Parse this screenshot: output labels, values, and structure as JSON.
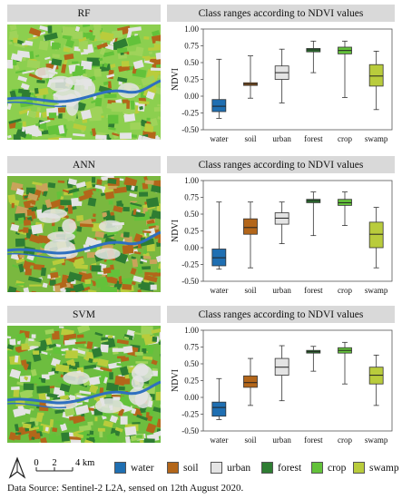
{
  "panels": [
    {
      "label": "RF",
      "title": "Class ranges according to NDVI values"
    },
    {
      "label": "ANN",
      "title": "Class ranges according to NDVI values"
    },
    {
      "label": "SVM",
      "title": "Class ranges according to NDVI values"
    }
  ],
  "legend": {
    "north_symbol": "north-arrow-icon",
    "scale_ticks": [
      "0",
      "2",
      "4 km"
    ],
    "items": [
      {
        "label": "water",
        "color": "#1f6fb2"
      },
      {
        "label": "soil",
        "color": "#b3661a"
      },
      {
        "label": "urban",
        "color": "#e4e4e4"
      },
      {
        "label": "forest",
        "color": "#2e7d32"
      },
      {
        "label": "crop",
        "color": "#63c23a"
      },
      {
        "label": "swamp",
        "color": "#b9cc3c"
      }
    ]
  },
  "source_text": "Data Source: Sentinel-2 L2A, sensed on 12th August 2020.",
  "chart_data": [
    {
      "type": "box",
      "title": "Class ranges according to NDVI values",
      "ylabel": "NDVI",
      "ylim": [
        -0.5,
        1.0
      ],
      "yticks": [
        "1.00",
        "0.75",
        "0.50",
        "0.25",
        "0.00",
        "-0.25",
        "-0.50"
      ],
      "categories": [
        "water",
        "soil",
        "urban",
        "forest",
        "crop",
        "swamp"
      ],
      "colors": [
        "#1f6fb2",
        "#b3661a",
        "#e4e4e4",
        "#2e7d32",
        "#63c23a",
        "#b9cc3c"
      ],
      "boxes": [
        {
          "min": -0.33,
          "q1": -0.23,
          "median": -0.15,
          "q3": -0.05,
          "max": 0.55
        },
        {
          "min": -0.03,
          "q1": 0.16,
          "median": 0.18,
          "q3": 0.2,
          "max": 0.6
        },
        {
          "min": -0.1,
          "q1": 0.25,
          "median": 0.35,
          "q3": 0.45,
          "max": 0.7
        },
        {
          "min": 0.35,
          "q1": 0.66,
          "median": 0.69,
          "q3": 0.71,
          "max": 0.82
        },
        {
          "min": -0.02,
          "q1": 0.63,
          "median": 0.68,
          "q3": 0.73,
          "max": 0.82
        },
        {
          "min": -0.2,
          "q1": 0.15,
          "median": 0.3,
          "q3": 0.47,
          "max": 0.67
        }
      ]
    },
    {
      "type": "box",
      "title": "Class ranges according to NDVI values",
      "ylabel": "NDVI",
      "ylim": [
        -0.5,
        1.0
      ],
      "yticks": [
        "1.00",
        "0.75",
        "0.50",
        "0.25",
        "0.00",
        "-0.25",
        "-0.50"
      ],
      "categories": [
        "water",
        "soil",
        "urban",
        "forest",
        "crop",
        "swamp"
      ],
      "colors": [
        "#1f6fb2",
        "#b3661a",
        "#e4e4e4",
        "#2e7d32",
        "#63c23a",
        "#b9cc3c"
      ],
      "boxes": [
        {
          "min": -0.32,
          "q1": -0.27,
          "median": -0.15,
          "q3": -0.02,
          "max": 0.68
        },
        {
          "min": -0.3,
          "q1": 0.2,
          "median": 0.3,
          "q3": 0.43,
          "max": 0.68
        },
        {
          "min": 0.06,
          "q1": 0.35,
          "median": 0.44,
          "q3": 0.52,
          "max": 0.68
        },
        {
          "min": 0.18,
          "q1": 0.67,
          "median": 0.7,
          "q3": 0.72,
          "max": 0.83
        },
        {
          "min": 0.33,
          "q1": 0.63,
          "median": 0.67,
          "q3": 0.72,
          "max": 0.83
        },
        {
          "min": -0.3,
          "q1": 0.0,
          "median": 0.2,
          "q3": 0.38,
          "max": 0.6
        }
      ]
    },
    {
      "type": "box",
      "title": "Class ranges according to NDVI values",
      "ylabel": "NDVI",
      "ylim": [
        -0.5,
        1.0
      ],
      "yticks": [
        "1.00",
        "0.75",
        "0.50",
        "0.25",
        "0.00",
        "-0.25",
        "-0.50"
      ],
      "categories": [
        "water",
        "soil",
        "urban",
        "forest",
        "crop",
        "swamp"
      ],
      "colors": [
        "#1f6fb2",
        "#b3661a",
        "#e4e4e4",
        "#2e7d32",
        "#63c23a",
        "#b9cc3c"
      ],
      "boxes": [
        {
          "min": -0.33,
          "q1": -0.28,
          "median": -0.15,
          "q3": -0.07,
          "max": 0.28
        },
        {
          "min": -0.12,
          "q1": 0.15,
          "median": 0.22,
          "q3": 0.32,
          "max": 0.58
        },
        {
          "min": -0.05,
          "q1": 0.33,
          "median": 0.45,
          "q3": 0.58,
          "max": 0.77
        },
        {
          "min": 0.39,
          "q1": 0.66,
          "median": 0.68,
          "q3": 0.7,
          "max": 0.76
        },
        {
          "min": 0.2,
          "q1": 0.66,
          "median": 0.7,
          "q3": 0.74,
          "max": 0.82
        },
        {
          "min": -0.12,
          "q1": 0.2,
          "median": 0.33,
          "q3": 0.45,
          "max": 0.63
        }
      ]
    }
  ]
}
